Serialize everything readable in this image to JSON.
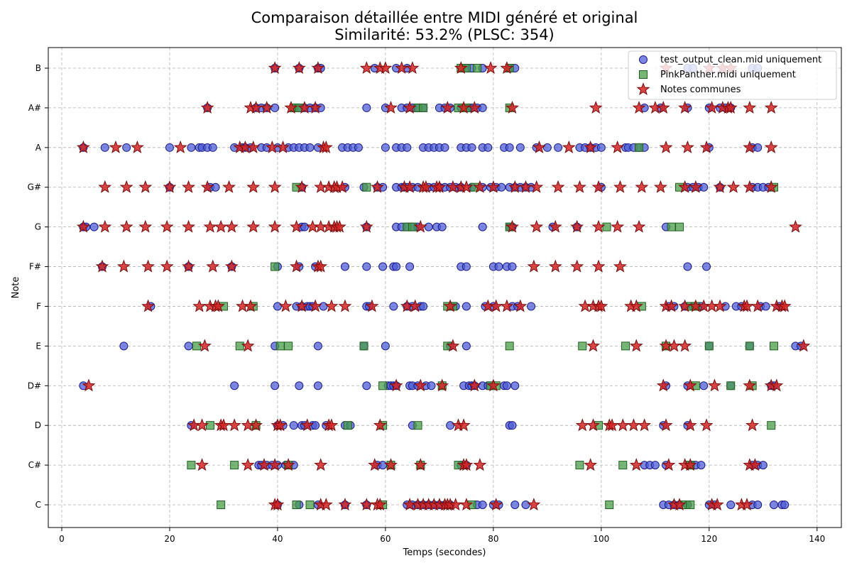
{
  "chart_data": {
    "type": "scatter",
    "title": "Comparaison détaillée entre MIDI généré et original",
    "subtitle": "Similarité: 53.2% (PLSC: 354)",
    "xlabel": "Temps (secondes)",
    "ylabel": "Note",
    "xlim": [
      -2.5,
      144.5
    ],
    "xticks": [
      0,
      20,
      40,
      60,
      80,
      100,
      120,
      140
    ],
    "categories": [
      "C",
      "C#",
      "D",
      "D#",
      "E",
      "F",
      "F#",
      "G",
      "G#",
      "A",
      "A#",
      "B"
    ],
    "grid": true,
    "legend_position": "top-right",
    "colors": {
      "generated_only": "#4f5fd6",
      "original_only": "#4a9e4a",
      "common": "#d42424"
    },
    "series": [
      {
        "name": "test_output_clean.mid uniquement",
        "marker": "circle",
        "points": {
          "C": [
            40,
            44,
            47.5,
            52.5,
            56.5,
            64,
            65,
            66,
            67,
            68,
            69,
            70,
            71,
            72,
            77,
            78,
            80,
            81,
            84,
            86,
            111.5,
            112.5,
            113.5,
            114.5,
            116,
            120,
            121,
            124,
            128,
            129,
            132,
            133.5,
            134
          ],
          "C#": [
            36.5,
            37,
            38,
            39,
            40,
            41.5,
            43,
            58.5,
            59.5,
            74,
            75,
            108,
            109,
            110,
            112,
            116.5,
            117.5,
            118.5,
            128,
            129,
            130
          ],
          "D": [
            24,
            40,
            41,
            43,
            44.5,
            45,
            46.5,
            47,
            49,
            52.5,
            53.5,
            65,
            72,
            83,
            83.5,
            111.5,
            116
          ],
          "D#": [
            4,
            32,
            39.5,
            44,
            47.5,
            56.5,
            60.5,
            61,
            61.5,
            62,
            64.5,
            65,
            66,
            67.5,
            68.5,
            74.5,
            75.5,
            76,
            76.5,
            78,
            79,
            82,
            82.5,
            84,
            112,
            116,
            119,
            124,
            131.5,
            132
          ],
          "E": [
            11.5,
            23.5,
            39.5,
            47.5,
            56,
            60,
            72,
            75,
            120,
            127.5,
            136,
            137
          ],
          "F": [
            16.5,
            40,
            43.5,
            44.5,
            45.5,
            46,
            46.5,
            48.5,
            56.5,
            57,
            61.5,
            64,
            65,
            66.5,
            67,
            73,
            75,
            78.5,
            80,
            83.5,
            84.5,
            87,
            112.5,
            113.5,
            115.5,
            117,
            118.5,
            123,
            125,
            126,
            129.5,
            130.5,
            133
          ],
          "F#": [
            7.5,
            23.5,
            31.5,
            40,
            44,
            47,
            52.5,
            56.5,
            59.5,
            61.5,
            62,
            64.5,
            74,
            75,
            80,
            81,
            82.5,
            83.5,
            116,
            119.5
          ],
          "G": [
            4,
            4.5,
            6,
            44.5,
            45,
            56.5,
            62,
            63,
            64,
            65,
            66,
            68,
            69.5,
            70.5,
            78,
            83,
            83.5,
            91,
            95.5,
            112
          ],
          "G#": [
            20,
            27.5,
            28.5,
            44.5,
            52.5,
            56,
            58.5,
            59.5,
            62,
            63,
            63.5,
            64,
            65,
            66,
            68,
            69,
            70,
            71,
            72,
            73,
            74,
            76,
            78,
            79.5,
            80.5,
            81.5,
            83,
            84,
            85,
            86,
            87,
            100,
            116,
            117,
            118,
            119,
            122,
            128,
            129,
            130,
            131
          ],
          "A": [
            4,
            8,
            12,
            20,
            24,
            25.5,
            26,
            27,
            28,
            32,
            33.5,
            34,
            35,
            37,
            38,
            40,
            42,
            43,
            44,
            45,
            46,
            47.5,
            52,
            53,
            54,
            55,
            60,
            62,
            63,
            64,
            67,
            68,
            69,
            70,
            71,
            74,
            75,
            76,
            78,
            79,
            82,
            83,
            85,
            88,
            90,
            92,
            96,
            97,
            98,
            99,
            100,
            104.5,
            105,
            106,
            107,
            108,
            120,
            128,
            129
          ],
          "A#": [
            27,
            36,
            37,
            38,
            39.5,
            43,
            44,
            45,
            46,
            47,
            48,
            56.5,
            60,
            63,
            64,
            65,
            66,
            67,
            70,
            71,
            72,
            74,
            75.5,
            76,
            77,
            78,
            108,
            111,
            116,
            120,
            122,
            123,
            124
          ],
          "B": [
            39.5,
            44,
            47.5,
            48,
            58,
            62,
            64,
            75,
            76,
            78,
            83,
            84,
            116,
            117,
            128,
            129
          ]
        }
      },
      {
        "name": "PinkPanther.midi uniquement",
        "marker": "square",
        "points": {
          "C": [
            29.5,
            43.5,
            46,
            59.5,
            76,
            101.5,
            115.5,
            116.5
          ],
          "C#": [
            24,
            32,
            42,
            61,
            66.5,
            73.5,
            96,
            104,
            116.5
          ],
          "D": [
            27.5,
            36,
            53,
            59.5,
            66,
            99.5,
            131.5
          ],
          "D#": [
            59.5,
            70.5,
            79.5,
            80.5,
            117.5,
            124,
            128
          ],
          "E": [
            25,
            33,
            40.5,
            42,
            56,
            71.5,
            83,
            96.5,
            104.5,
            112,
            120,
            127.5,
            132
          ],
          "F": [
            30,
            35.5,
            71.5,
            72.5,
            107.5,
            116.5,
            117.5
          ],
          "F#": [
            39.5
          ],
          "G": [
            64,
            65,
            83,
            101,
            113,
            114.5
          ],
          "G#": [
            43.5,
            56.5,
            76.5,
            114.5,
            132
          ],
          "A": [
            107
          ],
          "A#": [
            43,
            44,
            66,
            67,
            73.5,
            75,
            83
          ],
          "B": [
            74,
            75,
            77,
            83
          ]
        }
      },
      {
        "name": "Notes communes",
        "marker": "star",
        "points": {
          "C": [
            39.5,
            40,
            48,
            49,
            52.5,
            56.5,
            58.5,
            59,
            64.5,
            66,
            67,
            68,
            69,
            70,
            71,
            71.5,
            72,
            73,
            75,
            80.5,
            87.5,
            113.5,
            114.5,
            120.5,
            121.5,
            126,
            127
          ],
          "C#": [
            26,
            34.5,
            37.5,
            39.5,
            42,
            48,
            58,
            61,
            66.5,
            74.5,
            75,
            77.5,
            98,
            106.5,
            112.5,
            115.5,
            116.5,
            127.5,
            128.5
          ],
          "D": [
            24.5,
            26,
            29.5,
            30,
            32,
            34.5,
            36,
            40,
            40.5,
            45.5,
            49.5,
            50,
            59,
            73.5,
            74.5,
            96.5,
            98.5,
            101.5,
            102,
            104,
            106,
            108,
            112,
            116.5,
            119.5,
            128
          ],
          "D#": [
            5,
            62,
            66.5,
            70.5,
            76.5,
            80,
            111.5,
            116.5,
            121,
            127.5,
            131.5,
            132.5
          ],
          "E": [
            26.5,
            34.5,
            72.5,
            98.5,
            106.5,
            112,
            113.5,
            115.5,
            137.5
          ],
          "F": [
            16,
            25.5,
            27.5,
            28.5,
            29,
            33.5,
            35,
            41.5,
            44.5,
            47,
            50,
            52.5,
            57.5,
            64,
            65.5,
            72,
            79,
            80.5,
            82.5,
            85,
            97,
            98.5,
            99.5,
            100,
            105.5,
            106.5,
            112,
            113,
            115.5,
            117.5,
            119,
            120.5,
            122,
            126.5,
            127,
            129,
            132.5,
            133.5,
            134
          ],
          "F#": [
            7.5,
            11.5,
            16,
            19.5,
            23.5,
            28,
            31.5,
            43.5,
            47.5,
            48,
            87.5,
            91.5,
            95.5,
            99.5,
            103.5
          ],
          "G": [
            4,
            8,
            12,
            15.5,
            19.5,
            23.5,
            27.5,
            29.5,
            31.5,
            35.5,
            39.5,
            43.5,
            46.5,
            48,
            49.5,
            50.5,
            51,
            51.5,
            56.5,
            66.5,
            83.5,
            88,
            91.5,
            95.5,
            99.5,
            103,
            107,
            136
          ],
          "G#": [
            8,
            12,
            15.5,
            20,
            23.5,
            27,
            31,
            35.5,
            39.5,
            44.5,
            48,
            49.5,
            50.5,
            51,
            52,
            58.5,
            63.5,
            64.5,
            67,
            67.5,
            69.5,
            70,
            72.5,
            74,
            75,
            77.5,
            80,
            84,
            86,
            88,
            92,
            96,
            99.5,
            103.5,
            107.5,
            111,
            115.5,
            117.5,
            122,
            124.5,
            127.5,
            131.5
          ],
          "A": [
            4,
            10,
            14,
            22,
            33,
            34,
            35.5,
            39,
            41,
            48.5,
            49,
            88.5,
            94,
            98,
            103,
            112,
            116,
            119.5,
            127.5,
            131.5
          ],
          "A#": [
            27,
            35,
            36,
            38,
            42.5,
            45,
            47,
            61,
            64.5,
            71.5,
            74.5,
            76.5,
            83.5,
            99,
            107,
            110,
            111.5,
            115.5,
            120.5,
            122.5,
            123.5,
            124,
            127.5,
            131.5
          ],
          "B": [
            39.5,
            44,
            47.5,
            56.5,
            59,
            60,
            63,
            65,
            74,
            79.5,
            82.5,
            112,
            120,
            122.5,
            124
          ]
        }
      }
    ]
  }
}
